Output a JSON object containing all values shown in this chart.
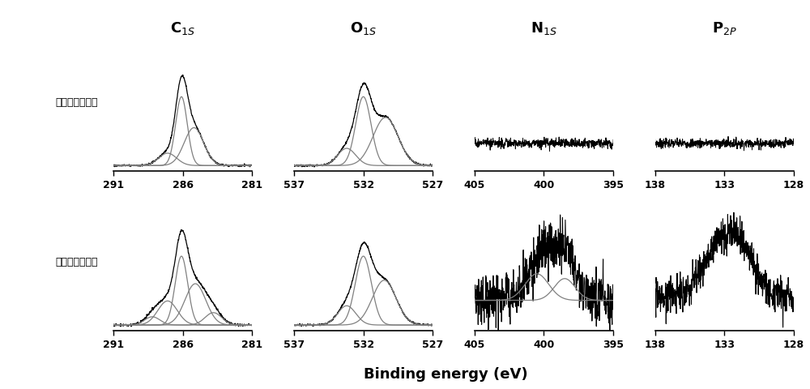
{
  "col_titles": [
    "C$_{1S}$",
    "O$_{1S}$",
    "N$_{1S}$",
    "P$_{2P}$"
  ],
  "row_labels": [
    "改性前聚碳酸酯",
    "改性后聚碳酸酯"
  ],
  "xlabel": "Binding energy (eV)",
  "col_ranges": [
    {
      "xmin": 281,
      "xmax": 291,
      "xticks": [
        291,
        286,
        281
      ]
    },
    {
      "xmin": 527,
      "xmax": 537,
      "xticks": [
        537,
        532,
        527
      ]
    },
    {
      "xmin": 395,
      "xmax": 405,
      "xticks": [
        405,
        400,
        395
      ]
    },
    {
      "xmin": 128,
      "xmax": 138,
      "xticks": [
        138,
        133,
        128
      ]
    }
  ]
}
